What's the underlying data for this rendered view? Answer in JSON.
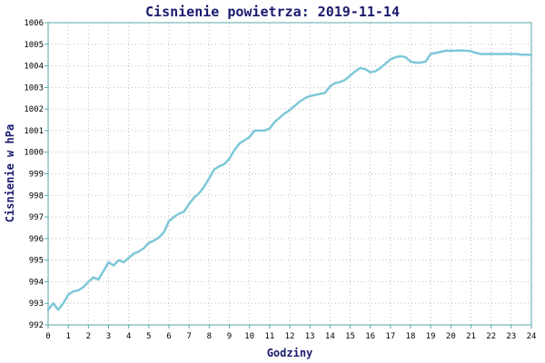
{
  "chart_data": {
    "type": "line",
    "title": "Cisnienie powietrza: 2019-11-14",
    "xlabel": "Godziny",
    "ylabel": "Cisnienie w hPa",
    "xlim": [
      0,
      24
    ],
    "ylim": [
      992,
      1006
    ],
    "x_ticks": [
      0,
      1,
      2,
      3,
      4,
      5,
      6,
      7,
      8,
      9,
      10,
      11,
      12,
      13,
      14,
      15,
      16,
      17,
      18,
      19,
      20,
      21,
      22,
      23,
      24
    ],
    "y_ticks": [
      992,
      993,
      994,
      995,
      996,
      997,
      998,
      999,
      1000,
      1001,
      1002,
      1003,
      1004,
      1005,
      1006
    ],
    "grid": true,
    "line_color": "#7ec8d8",
    "series": [
      {
        "x": [
          0,
          0.25,
          0.5,
          0.75,
          1,
          1.25,
          1.5,
          1.75,
          2,
          2.25,
          2.5,
          2.75,
          3,
          3.25,
          3.5,
          3.75,
          4,
          4.25,
          4.5,
          4.75,
          5,
          5.25,
          5.5,
          5.75,
          6,
          6.25,
          6.5,
          6.75,
          7,
          7.25,
          7.5,
          7.75,
          8,
          8.25,
          8.5,
          8.75,
          9,
          9.25,
          9.5,
          9.75,
          10,
          10.25,
          10.5,
          10.75,
          11,
          11.25,
          11.5,
          11.75,
          12,
          12.25,
          12.5,
          12.75,
          13,
          13.25,
          13.5,
          13.75,
          14,
          14.25,
          14.5,
          14.75,
          15,
          15.25,
          15.5,
          15.75,
          16,
          16.25,
          16.5,
          16.75,
          17,
          17.25,
          17.5,
          17.75,
          18,
          18.25,
          18.5,
          18.75,
          19,
          19.25,
          19.5,
          19.75,
          20,
          20.25,
          20.5,
          20.75,
          21,
          21.25,
          21.5,
          21.75,
          22,
          22.25,
          22.5,
          22.75,
          23,
          23.25,
          23.5,
          23.75,
          24
        ],
        "values": [
          992.7,
          993.0,
          992.7,
          993.0,
          993.4,
          993.55,
          993.6,
          993.75,
          994.0,
          994.2,
          994.1,
          994.5,
          994.9,
          994.75,
          995.0,
          994.9,
          995.1,
          995.3,
          995.4,
          995.55,
          995.8,
          995.9,
          996.05,
          996.3,
          996.8,
          997.0,
          997.15,
          997.25,
          997.6,
          997.9,
          998.1,
          998.4,
          998.8,
          999.2,
          999.35,
          999.45,
          999.7,
          1000.1,
          1000.4,
          1000.55,
          1000.7,
          1001.0,
          1001.0,
          1001.0,
          1001.1,
          1001.4,
          1001.6,
          1001.8,
          1001.95,
          1002.15,
          1002.35,
          1002.5,
          1002.6,
          1002.65,
          1002.7,
          1002.75,
          1003.05,
          1003.2,
          1003.25,
          1003.35,
          1003.55,
          1003.75,
          1003.9,
          1003.85,
          1003.7,
          1003.75,
          1003.9,
          1004.1,
          1004.3,
          1004.4,
          1004.45,
          1004.4,
          1004.2,
          1004.15,
          1004.15,
          1004.2,
          1004.55,
          1004.6,
          1004.65,
          1004.7,
          1004.7,
          1004.7,
          1004.72,
          1004.7,
          1004.68,
          1004.6,
          1004.55,
          1004.55,
          1004.55,
          1004.55,
          1004.55,
          1004.55,
          1004.55,
          1004.55,
          1004.52,
          1004.52,
          1004.5
        ]
      }
    ]
  }
}
